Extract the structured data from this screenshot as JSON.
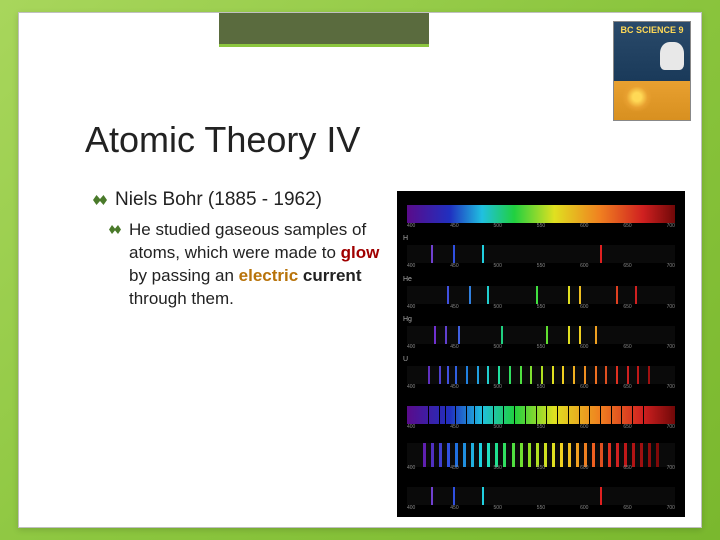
{
  "book": {
    "title": "BC SCIENCE 9"
  },
  "slide": {
    "title": "Atomic Theory IV",
    "bullet_main": "Niels Bohr (1885 - 1962)",
    "bullet_sub_parts": {
      "p1": "He studied gaseous samples of atoms, which were made to ",
      "glow": "glow",
      "p2": " by passing an ",
      "electric": "electric ",
      "current": "current",
      "p3": " through them."
    }
  },
  "spectra": {
    "rows": [
      {
        "type": "continuous",
        "label": ""
      },
      {
        "type": "emission",
        "label": "H",
        "lines": [
          {
            "pos": 9,
            "color": "#7040d0"
          },
          {
            "pos": 17,
            "color": "#3050e0"
          },
          {
            "pos": 28,
            "color": "#20d0e0"
          },
          {
            "pos": 72,
            "color": "#e02020"
          }
        ]
      },
      {
        "type": "emission",
        "label": "He",
        "lines": [
          {
            "pos": 15,
            "color": "#4050e0"
          },
          {
            "pos": 23,
            "color": "#3080e0"
          },
          {
            "pos": 30,
            "color": "#20d0d0"
          },
          {
            "pos": 48,
            "color": "#40e040"
          },
          {
            "pos": 60,
            "color": "#e0e020"
          },
          {
            "pos": 64,
            "color": "#f0c020"
          },
          {
            "pos": 78,
            "color": "#e04020"
          },
          {
            "pos": 85,
            "color": "#d02020"
          }
        ]
      },
      {
        "type": "emission",
        "label": "Hg",
        "lines": [
          {
            "pos": 10,
            "color": "#7030d0"
          },
          {
            "pos": 14,
            "color": "#6040d0"
          },
          {
            "pos": 19,
            "color": "#4060e0"
          },
          {
            "pos": 35,
            "color": "#20d080"
          },
          {
            "pos": 52,
            "color": "#60e030"
          },
          {
            "pos": 60,
            "color": "#e0e020"
          },
          {
            "pos": 64,
            "color": "#f0d020"
          },
          {
            "pos": 70,
            "color": "#f0a020"
          }
        ]
      },
      {
        "type": "emission",
        "label": "U",
        "lines": [
          {
            "pos": 8,
            "color": "#6030c0"
          },
          {
            "pos": 12,
            "color": "#5040d0"
          },
          {
            "pos": 15,
            "color": "#4050e0"
          },
          {
            "pos": 18,
            "color": "#3060e0"
          },
          {
            "pos": 22,
            "color": "#2080e0"
          },
          {
            "pos": 26,
            "color": "#20a0e0"
          },
          {
            "pos": 30,
            "color": "#20d0d0"
          },
          {
            "pos": 34,
            "color": "#20e0a0"
          },
          {
            "pos": 38,
            "color": "#30e060"
          },
          {
            "pos": 42,
            "color": "#50e040"
          },
          {
            "pos": 46,
            "color": "#80e030"
          },
          {
            "pos": 50,
            "color": "#b0e020"
          },
          {
            "pos": 54,
            "color": "#e0e020"
          },
          {
            "pos": 58,
            "color": "#f0d020"
          },
          {
            "pos": 62,
            "color": "#f0b020"
          },
          {
            "pos": 66,
            "color": "#f09020"
          },
          {
            "pos": 70,
            "color": "#f07020"
          },
          {
            "pos": 74,
            "color": "#e05020"
          },
          {
            "pos": 78,
            "color": "#e03020"
          },
          {
            "pos": 82,
            "color": "#d02020"
          },
          {
            "pos": 86,
            "color": "#c01818"
          },
          {
            "pos": 90,
            "color": "#a01010"
          }
        ]
      },
      {
        "type": "absorption",
        "label": "",
        "lines": [
          {
            "pos": 8
          },
          {
            "pos": 12
          },
          {
            "pos": 14
          },
          {
            "pos": 18
          },
          {
            "pos": 22
          },
          {
            "pos": 25
          },
          {
            "pos": 28
          },
          {
            "pos": 32
          },
          {
            "pos": 36
          },
          {
            "pos": 40
          },
          {
            "pos": 44
          },
          {
            "pos": 48
          },
          {
            "pos": 52
          },
          {
            "pos": 56
          },
          {
            "pos": 60
          },
          {
            "pos": 64
          },
          {
            "pos": 68
          },
          {
            "pos": 72
          },
          {
            "pos": 76
          },
          {
            "pos": 80
          },
          {
            "pos": 84
          },
          {
            "pos": 88
          }
        ]
      },
      {
        "type": "multi",
        "label": "",
        "lines": [
          {
            "pos": 6,
            "color": "#6020b0"
          },
          {
            "pos": 9,
            "color": "#5030c0"
          },
          {
            "pos": 12,
            "color": "#4040d0"
          },
          {
            "pos": 15,
            "color": "#3050e0"
          },
          {
            "pos": 18,
            "color": "#2070e0"
          },
          {
            "pos": 21,
            "color": "#2090e0"
          },
          {
            "pos": 24,
            "color": "#20b0e0"
          },
          {
            "pos": 27,
            "color": "#20d0e0"
          },
          {
            "pos": 30,
            "color": "#20e0c0"
          },
          {
            "pos": 33,
            "color": "#20e090"
          },
          {
            "pos": 36,
            "color": "#30e060"
          },
          {
            "pos": 39,
            "color": "#50e040"
          },
          {
            "pos": 42,
            "color": "#70e030"
          },
          {
            "pos": 45,
            "color": "#90e020"
          },
          {
            "pos": 48,
            "color": "#b0e020"
          },
          {
            "pos": 51,
            "color": "#d0e020"
          },
          {
            "pos": 54,
            "color": "#e0e020"
          },
          {
            "pos": 57,
            "color": "#f0d020"
          },
          {
            "pos": 60,
            "color": "#f0c020"
          },
          {
            "pos": 63,
            "color": "#f0a020"
          },
          {
            "pos": 66,
            "color": "#f08020"
          },
          {
            "pos": 69,
            "color": "#f06020"
          },
          {
            "pos": 72,
            "color": "#e05020"
          },
          {
            "pos": 75,
            "color": "#e03020"
          },
          {
            "pos": 78,
            "color": "#d02020"
          },
          {
            "pos": 81,
            "color": "#c01818"
          },
          {
            "pos": 84,
            "color": "#b01414"
          },
          {
            "pos": 87,
            "color": "#a01010"
          },
          {
            "pos": 90,
            "color": "#900c0c"
          },
          {
            "pos": 93,
            "color": "#800808"
          }
        ]
      },
      {
        "type": "emission",
        "label": "",
        "lines": [
          {
            "pos": 9,
            "color": "#7040d0"
          },
          {
            "pos": 17,
            "color": "#3050e0"
          },
          {
            "pos": 28,
            "color": "#20d0e0"
          },
          {
            "pos": 72,
            "color": "#e02020"
          }
        ]
      }
    ],
    "scale_ticks": [
      "400",
      "450",
      "500",
      "550",
      "600",
      "650",
      "700"
    ]
  }
}
